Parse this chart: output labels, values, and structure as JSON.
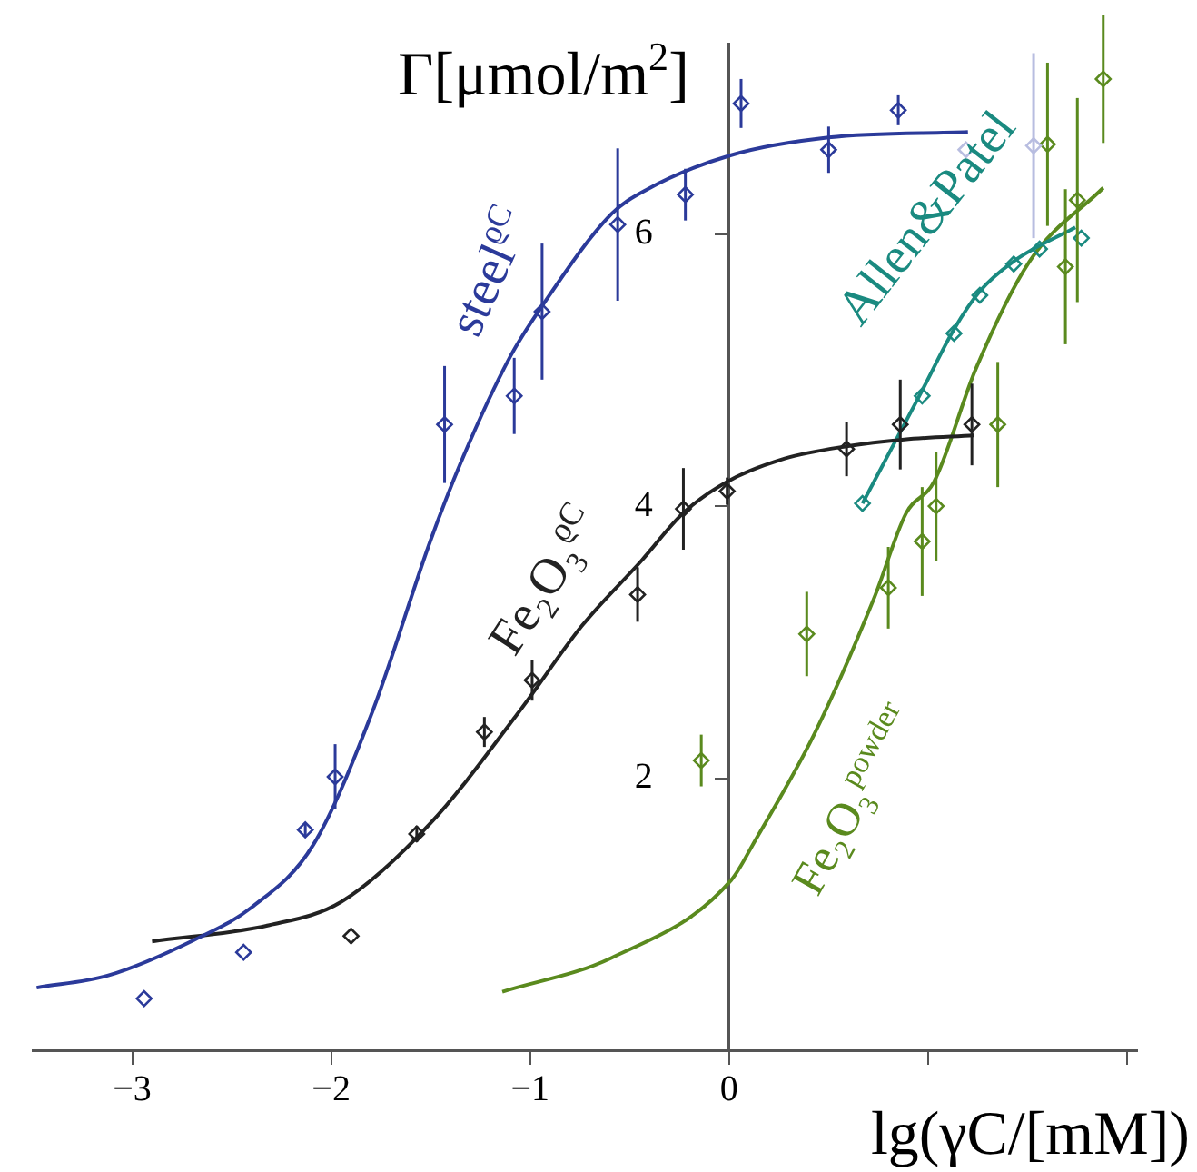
{
  "chart_data": {
    "type": "scatter",
    "xlabel": "lg(γC/[mM])",
    "ylabel": "Γ[μmol/m$^{2}$]",
    "xlim": [
      -3.5,
      2.05
    ],
    "ylim": [
      0,
      7.4
    ],
    "xticks": [
      -3,
      -2,
      -1,
      0,
      {
        "value": 1,
        "label": null
      },
      {
        "value": 2,
        "label": null
      }
    ],
    "yticks": [
      2,
      4,
      6
    ],
    "grid": false,
    "legend": false,
    "marker": "diamond",
    "series": [
      {
        "type": "line",
        "marker": "none",
        "color": "#2b3a9a",
        "x": [
          -3.48,
          -3.12,
          -2.69,
          -2.4,
          -2.09,
          -1.79,
          -1.5,
          -1.34,
          -1.1,
          -0.95,
          -0.59,
          -0.41,
          0.01,
          0.5,
          1.2
        ],
        "values": [
          0.46,
          0.55,
          0.81,
          1.05,
          1.51,
          2.5,
          3.75,
          4.35,
          5.1,
          5.45,
          6.15,
          6.33,
          6.58,
          6.71,
          6.75
        ]
      },
      {
        "color": "#2b3a9a",
        "colors": [
          "#2b3a9a",
          "#2b3a9a",
          "#2b3a9a",
          "#2b3a9a",
          "#2b3a9a",
          "#2b3a9a",
          "#2b3a9a",
          "#2b3a9a",
          "#2b3a9a",
          "#2b3a9a",
          "#2b3a9a",
          "#2b3a9a",
          "#b8bde0",
          "#b8bde0"
        ],
        "x": [
          -2.94,
          -2.44,
          -2.13,
          -1.98,
          -1.43,
          -1.08,
          -0.94,
          -0.56,
          -0.22,
          0.06,
          0.5,
          0.85,
          1.19,
          1.53
        ],
        "values": [
          0.38,
          0.72,
          1.62,
          2.01,
          4.6,
          4.81,
          5.43,
          6.07,
          6.29,
          6.96,
          6.62,
          6.91,
          6.62,
          6.65
        ],
        "errors": [
          null,
          null,
          0.05,
          0.24,
          0.43,
          0.28,
          0.5,
          0.56,
          0.19,
          0.18,
          0.17,
          0.11,
          null,
          [
            5.97,
            7.33
          ]
        ]
      },
      {
        "type": "line",
        "marker": "none",
        "color": "#222222",
        "x": [
          -2.9,
          -2.31,
          -1.95,
          -1.5,
          -1.05,
          -0.74,
          -0.44,
          -0.23,
          -0.01,
          0.28,
          0.59,
          0.88,
          1.23
        ],
        "values": [
          0.8,
          0.92,
          1.09,
          1.67,
          2.5,
          3.12,
          3.6,
          3.95,
          4.18,
          4.35,
          4.44,
          4.49,
          4.52
        ]
      },
      {
        "color": "#222222",
        "x": [
          -1.9,
          -1.57,
          -1.23,
          -0.99,
          -0.46,
          -0.23,
          -0.01,
          0.59,
          0.86,
          1.22
        ],
        "values": [
          0.84,
          1.59,
          2.34,
          2.72,
          3.35,
          3.98,
          4.11,
          4.42,
          4.6,
          4.6
        ],
        "errors": [
          null,
          0.06,
          0.11,
          0.15,
          0.2,
          0.3,
          0.1,
          0.2,
          0.33,
          0.3
        ]
      },
      {
        "type": "line",
        "marker": "none",
        "color": "#1a8a80",
        "x": [
          0.67,
          0.97,
          1.13,
          1.26,
          1.43,
          1.74
        ],
        "values": [
          4.02,
          4.85,
          5.3,
          5.58,
          5.8,
          6.05
        ]
      },
      {
        "color": "#1a8a80",
        "x": [
          0.67,
          0.97,
          1.13,
          1.26,
          1.43,
          1.56,
          1.77
        ],
        "values": [
          4.02,
          4.81,
          5.27,
          5.55,
          5.78,
          5.89,
          5.97
        ]
      },
      {
        "type": "line",
        "marker": "none",
        "color": "#5a8a1e",
        "x": [
          -1.14,
          -0.59,
          0.01,
          0.13,
          0.43,
          0.73,
          0.89,
          1.03,
          1.24,
          1.51,
          1.88
        ],
        "values": [
          0.43,
          0.68,
          1.25,
          1.54,
          2.33,
          3.33,
          3.95,
          4.18,
          5.01,
          5.8,
          6.34
        ]
      },
      {
        "color": "#5a8a1e",
        "x": [
          -0.14,
          0.39,
          0.8,
          0.97,
          1.04,
          1.35,
          1.6,
          1.69,
          1.75,
          1.88
        ],
        "values": [
          2.13,
          3.06,
          3.4,
          3.74,
          4.0,
          4.6,
          6.66,
          5.76,
          6.25,
          7.14
        ],
        "errors": [
          0.19,
          0.31,
          0.3,
          0.4,
          0.4,
          0.46,
          0.6,
          0.57,
          0.75,
          0.47
        ]
      }
    ],
    "annotations": [
      "steel$^{ϱC}$",
      "Fe₂O₃$^{ϱC}$",
      "Allen&Patel",
      "Fe₂O₃$^{powder}$"
    ]
  }
}
